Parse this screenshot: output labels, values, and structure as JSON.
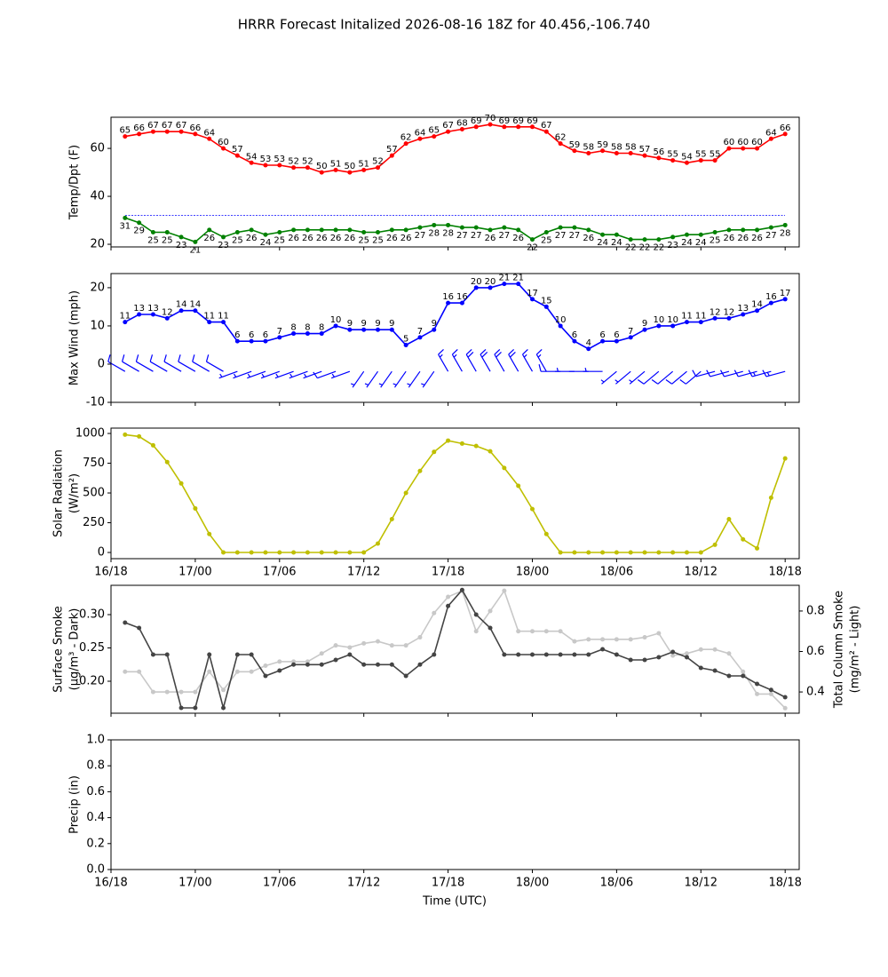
{
  "title": "HRRR Forecast Initalized 2026-08-16 18Z for 40.456,-106.740",
  "xlabel": "Time (UTC)",
  "chart_data": [
    {
      "type": "line",
      "ylabel": [
        "Temp/Dpt (F)"
      ],
      "x": [
        "16/19",
        "16/20",
        "16/21",
        "16/22",
        "16/23",
        "17/00",
        "17/01",
        "17/02",
        "17/03",
        "17/04",
        "17/05",
        "17/06",
        "17/07",
        "17/08",
        "17/09",
        "17/10",
        "17/11",
        "17/12",
        "17/13",
        "17/14",
        "17/15",
        "17/16",
        "17/17",
        "17/18",
        "17/19",
        "17/20",
        "17/21",
        "17/22",
        "17/23",
        "18/00",
        "18/01",
        "18/02",
        "18/03",
        "18/04",
        "18/05",
        "18/06",
        "18/07",
        "18/08",
        "18/09",
        "18/10",
        "18/11",
        "18/12",
        "18/13",
        "18/14",
        "18/15",
        "18/16",
        "18/17",
        "18/18"
      ],
      "xlim": [
        "16/18",
        "18/19"
      ],
      "xticks": [
        "16/18",
        "17/00",
        "17/06",
        "17/12",
        "17/18",
        "18/00",
        "18/06",
        "18/12",
        "18/18"
      ],
      "xtick_labels": false,
      "ylim": [
        18.9,
        73
      ],
      "yticks": [
        20,
        40,
        60
      ],
      "hline": {
        "value": 32,
        "color": "#0000ff"
      },
      "series": [
        {
          "color": "#ff0000",
          "labels": "above",
          "values": [
            65,
            66,
            67,
            67,
            67,
            66,
            64,
            60,
            57,
            54,
            53,
            53,
            52,
            52,
            50,
            51,
            50,
            51,
            52,
            57,
            62,
            64,
            65,
            67,
            68,
            69,
            70,
            69,
            69,
            69,
            67,
            62,
            59,
            58,
            59,
            58,
            58,
            57,
            56,
            55,
            54,
            55,
            55,
            60,
            60,
            60,
            64,
            66
          ]
        },
        {
          "color": "#008000",
          "labels": "below",
          "values": [
            31,
            29,
            25,
            25,
            23,
            21,
            26,
            23,
            25,
            26,
            24,
            25,
            26,
            26,
            26,
            26,
            26,
            25,
            25,
            26,
            26,
            27,
            28,
            28,
            27,
            27,
            26,
            27,
            26,
            22,
            25,
            27,
            27,
            26,
            24,
            24,
            22,
            22,
            22,
            23,
            24,
            24,
            25,
            26,
            26,
            26,
            27,
            28
          ]
        }
      ]
    },
    {
      "type": "line",
      "ylabel": [
        "Max Wind (mph)"
      ],
      "x": [
        "16/19",
        "16/20",
        "16/21",
        "16/22",
        "16/23",
        "17/00",
        "17/01",
        "17/02",
        "17/03",
        "17/04",
        "17/05",
        "17/06",
        "17/07",
        "17/08",
        "17/09",
        "17/10",
        "17/11",
        "17/12",
        "17/13",
        "17/14",
        "17/15",
        "17/16",
        "17/17",
        "17/18",
        "17/19",
        "17/20",
        "17/21",
        "17/22",
        "17/23",
        "18/00",
        "18/01",
        "18/02",
        "18/03",
        "18/04",
        "18/05",
        "18/06",
        "18/07",
        "18/08",
        "18/09",
        "18/10",
        "18/11",
        "18/12",
        "18/13",
        "18/14",
        "18/15",
        "18/16",
        "18/17",
        "18/18"
      ],
      "xlim": [
        "16/18",
        "18/19"
      ],
      "xticks": [
        "16/18",
        "17/00",
        "17/06",
        "17/12",
        "17/18",
        "18/00",
        "18/06",
        "18/12",
        "18/18"
      ],
      "xtick_labels": false,
      "ylim": [
        -10,
        23.7
      ],
      "yticks": [
        -10,
        0,
        10,
        20
      ],
      "series": [
        {
          "color": "#0000ff",
          "labels": "above",
          "values": [
            11,
            13,
            13,
            12,
            14,
            14,
            11,
            11,
            6,
            6,
            6,
            7,
            8,
            8,
            8,
            10,
            9,
            9,
            9,
            9,
            5,
            7,
            9,
            16,
            16,
            20,
            20,
            21,
            21,
            17,
            15,
            10,
            6,
            4,
            6,
            6,
            7,
            9,
            10,
            10,
            11,
            11,
            12,
            12,
            13,
            14,
            16,
            17
          ]
        }
      ],
      "barb_dirs": [
        300,
        300,
        300,
        300,
        300,
        300,
        300,
        300,
        250,
        250,
        250,
        250,
        250,
        250,
        250,
        250,
        250,
        215,
        215,
        215,
        215,
        215,
        215,
        330,
        330,
        330,
        330,
        330,
        330,
        330,
        330,
        270,
        270,
        270,
        270,
        230,
        230,
        230,
        230,
        230,
        230,
        230,
        255,
        255,
        255,
        255,
        255,
        255
      ]
    },
    {
      "type": "line",
      "ylabel": [
        "Solar Radiation",
        "(W/m²)"
      ],
      "x": [
        "16/19",
        "16/20",
        "16/21",
        "16/22",
        "16/23",
        "17/00",
        "17/01",
        "17/02",
        "17/03",
        "17/04",
        "17/05",
        "17/06",
        "17/07",
        "17/08",
        "17/09",
        "17/10",
        "17/11",
        "17/12",
        "17/13",
        "17/14",
        "17/15",
        "17/16",
        "17/17",
        "17/18",
        "17/19",
        "17/20",
        "17/21",
        "17/22",
        "17/23",
        "18/00",
        "18/01",
        "18/02",
        "18/03",
        "18/04",
        "18/05",
        "18/06",
        "18/07",
        "18/08",
        "18/09",
        "18/10",
        "18/11",
        "18/12",
        "18/13",
        "18/14",
        "18/15",
        "18/16",
        "18/17",
        "18/18"
      ],
      "xlim": [
        "16/18",
        "18/19"
      ],
      "xticks": [
        "16/18",
        "17/00",
        "17/06",
        "17/12",
        "17/18",
        "18/00",
        "18/06",
        "18/12",
        "18/18"
      ],
      "xtick_labels": true,
      "ylim": [
        -52,
        1045
      ],
      "yticks": [
        0,
        250,
        500,
        750,
        1000
      ],
      "series": [
        {
          "color": "#bfbf00",
          "values": [
            990,
            975,
            900,
            760,
            580,
            370,
            155,
            0,
            0,
            0,
            0,
            0,
            0,
            0,
            0,
            0,
            0,
            0,
            75,
            280,
            500,
            685,
            845,
            940,
            915,
            895,
            850,
            710,
            560,
            365,
            155,
            0,
            0,
            0,
            0,
            0,
            0,
            0,
            0,
            0,
            0,
            0,
            65,
            280,
            110,
            35,
            460,
            790
          ]
        }
      ]
    },
    {
      "type": "line",
      "ylabel": [
        "Surface Smoke",
        "(μg/m³ - Dark)"
      ],
      "y2label": [
        "Total Column Smoke",
        "(mg/m² - Light)"
      ],
      "x": [
        "16/19",
        "16/20",
        "16/21",
        "16/22",
        "16/23",
        "17/00",
        "17/01",
        "17/02",
        "17/03",
        "17/04",
        "17/05",
        "17/06",
        "17/07",
        "17/08",
        "17/09",
        "17/10",
        "17/11",
        "17/12",
        "17/13",
        "17/14",
        "17/15",
        "17/16",
        "17/17",
        "17/18",
        "17/19",
        "17/20",
        "17/21",
        "17/22",
        "17/23",
        "18/00",
        "18/01",
        "18/02",
        "18/03",
        "18/04",
        "18/05",
        "18/06",
        "18/07",
        "18/08",
        "18/09",
        "18/10",
        "18/11",
        "18/12",
        "18/13",
        "18/14",
        "18/15",
        "18/16",
        "18/17",
        "18/18"
      ],
      "xlim": [
        "16/18",
        "18/19"
      ],
      "xticks": [
        "16/18",
        "17/00",
        "17/06",
        "17/12",
        "17/18",
        "18/00",
        "18/06",
        "18/12",
        "18/18"
      ],
      "xtick_labels": false,
      "ylim": [
        0.152,
        0.344
      ],
      "yticks": [
        {
          "value": 0.2,
          "label": "0.20"
        },
        0.25,
        {
          "value": 0.3,
          "label": "0.30"
        }
      ],
      "y2lim": [
        0.295,
        0.927
      ],
      "y2ticks": [
        0.4,
        0.6,
        0.8
      ],
      "series": [
        {
          "color": "#c8c8c8",
          "axis": "y2",
          "values": [
            0.5,
            0.5,
            0.4,
            0.4,
            0.4,
            0.4,
            0.5,
            0.41,
            0.5,
            0.5,
            0.53,
            0.55,
            0.55,
            0.55,
            0.59,
            0.63,
            0.62,
            0.64,
            0.65,
            0.63,
            0.63,
            0.67,
            0.79,
            0.87,
            0.9,
            0.7,
            0.8,
            0.9,
            0.7,
            0.7,
            0.7,
            0.7,
            0.65,
            0.66,
            0.66,
            0.66,
            0.66,
            0.67,
            0.69,
            0.58,
            0.59,
            0.61,
            0.61,
            0.59,
            0.5,
            0.39,
            0.39,
            0.32
          ]
        },
        {
          "color": "#444444",
          "values": [
            0.288,
            0.28,
            0.24,
            0.24,
            0.16,
            0.16,
            0.24,
            0.16,
            0.24,
            0.24,
            0.208,
            0.216,
            0.225,
            0.225,
            0.225,
            0.232,
            0.24,
            0.225,
            0.225,
            0.225,
            0.208,
            0.225,
            0.24,
            0.313,
            0.337,
            0.3,
            0.28,
            0.24,
            0.24,
            0.24,
            0.24,
            0.24,
            0.24,
            0.24,
            0.248,
            0.24,
            0.232,
            0.232,
            0.236,
            0.244,
            0.236,
            0.22,
            0.216,
            0.208,
            0.208,
            0.196,
            0.187,
            0.176
          ]
        }
      ]
    },
    {
      "type": "line",
      "ylabel": [
        "Precip (in)"
      ],
      "x": [
        "16/19",
        "16/20",
        "16/21",
        "16/22",
        "16/23",
        "17/00",
        "17/01",
        "17/02",
        "17/03",
        "17/04",
        "17/05",
        "17/06",
        "17/07",
        "17/08",
        "17/09",
        "17/10",
        "17/11",
        "17/12",
        "17/13",
        "17/14",
        "17/15",
        "17/16",
        "17/17",
        "17/18",
        "17/19",
        "17/20",
        "17/21",
        "17/22",
        "17/23",
        "18/00",
        "18/01",
        "18/02",
        "18/03",
        "18/04",
        "18/05",
        "18/06",
        "18/07",
        "18/08",
        "18/09",
        "18/10",
        "18/11",
        "18/12",
        "18/13",
        "18/14",
        "18/15",
        "18/16",
        "18/17",
        "18/18"
      ],
      "xlim": [
        "16/18",
        "18/19"
      ],
      "xticks": [
        "16/18",
        "17/00",
        "17/06",
        "17/12",
        "17/18",
        "18/00",
        "18/06",
        "18/12",
        "18/18"
      ],
      "xtick_labels": true,
      "ylim": [
        0,
        1
      ],
      "yticks": [
        {
          "value": 0,
          "label": "0.0"
        },
        0.2,
        0.4,
        0.6,
        0.8,
        {
          "value": 1,
          "label": "1.0"
        }
      ],
      "series": []
    }
  ]
}
